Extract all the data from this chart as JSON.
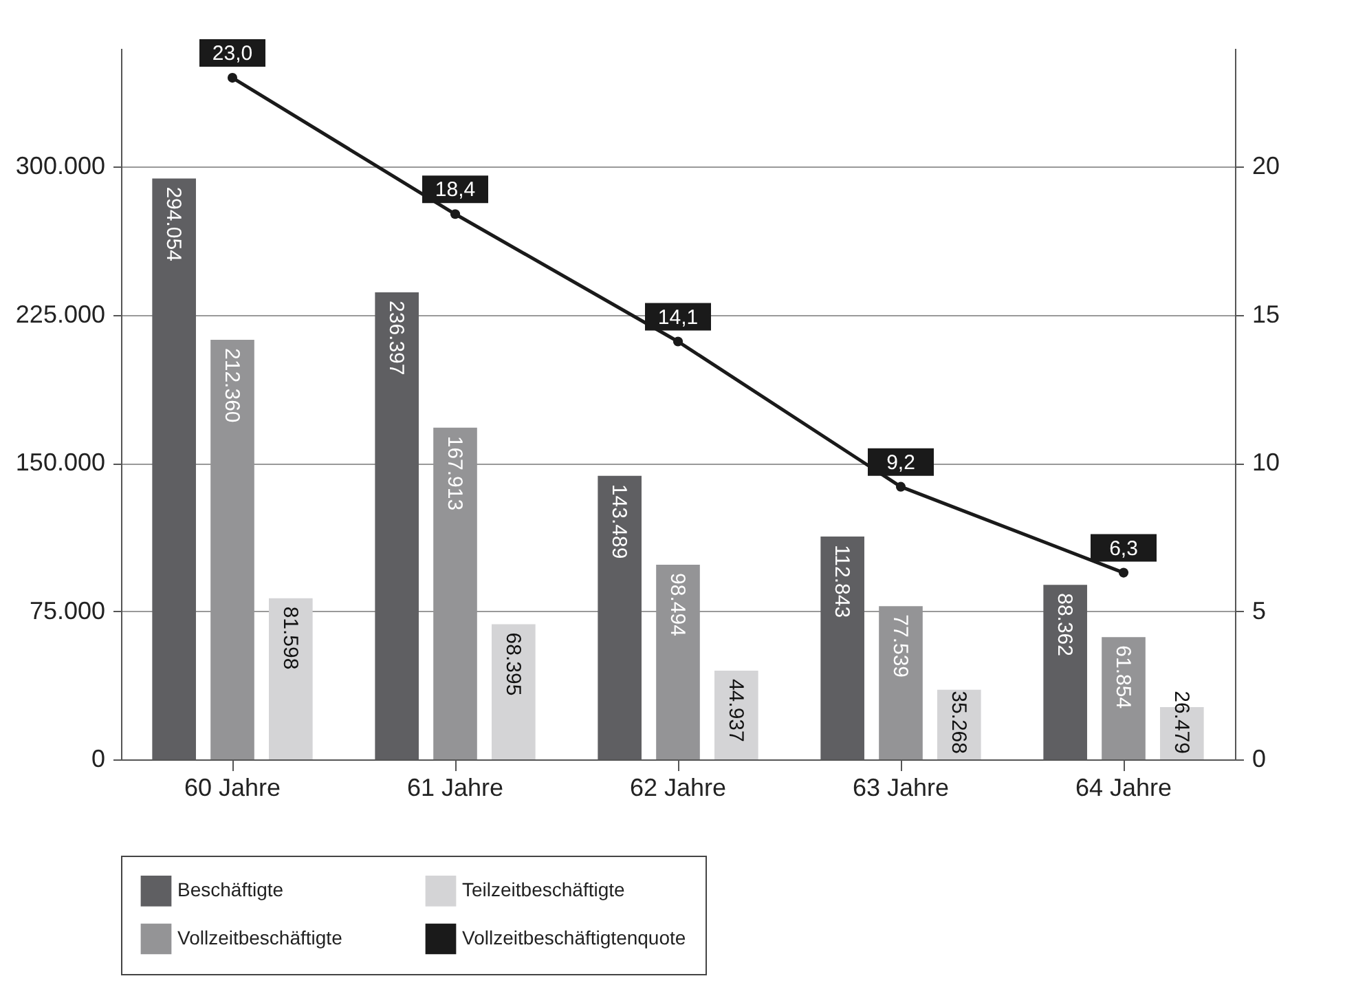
{
  "chart_data": {
    "type": "bar",
    "categories": [
      "60 Jahre",
      "61 Jahre",
      "62 Jahre",
      "63 Jahre",
      "64 Jahre"
    ],
    "series": [
      {
        "name": "Beschäftigte",
        "color": "#5f5f62",
        "values": [
          294054,
          236397,
          143489,
          112843,
          88362
        ],
        "value_labels": [
          "294.054",
          "236.397",
          "143.489",
          "112.843",
          "88.362"
        ]
      },
      {
        "name": "Vollzeitbeschäftigte",
        "color": "#949496",
        "values": [
          212360,
          167913,
          98494,
          77539,
          61854
        ],
        "value_labels": [
          "212.360",
          "167.913",
          "98.494",
          "77.539",
          "61.854"
        ]
      },
      {
        "name": "Teilzeitbeschäftigte",
        "color": "#d4d4d6",
        "values": [
          81598,
          68395,
          44937,
          35268,
          26479
        ],
        "value_labels": [
          "81.598",
          "68.395",
          "44.937",
          "35.268",
          "26.479"
        ]
      },
      {
        "name": "Vollzeitbeschäftigtenquote",
        "type": "line",
        "axis": "y2",
        "color": "#1a1a1a",
        "values": [
          23.0,
          18.4,
          14.1,
          9.2,
          6.3
        ],
        "value_labels": [
          "23,0",
          "18,4",
          "14,1",
          "9,2",
          "6,3"
        ]
      }
    ],
    "ylim": [
      0,
      360000
    ],
    "yticks": [
      {
        "value": 0,
        "label": "0"
      },
      {
        "value": 75000,
        "label": "75.000"
      },
      {
        "value": 150000,
        "label": "150.000"
      },
      {
        "value": 225000,
        "label": "225.000"
      },
      {
        "value": 300000,
        "label": "300.000"
      }
    ],
    "y2lim": [
      0,
      24
    ],
    "y2ticks": [
      0,
      5,
      10,
      15,
      20
    ],
    "grid": "y",
    "legend": "bottom",
    "marker": "circle"
  }
}
